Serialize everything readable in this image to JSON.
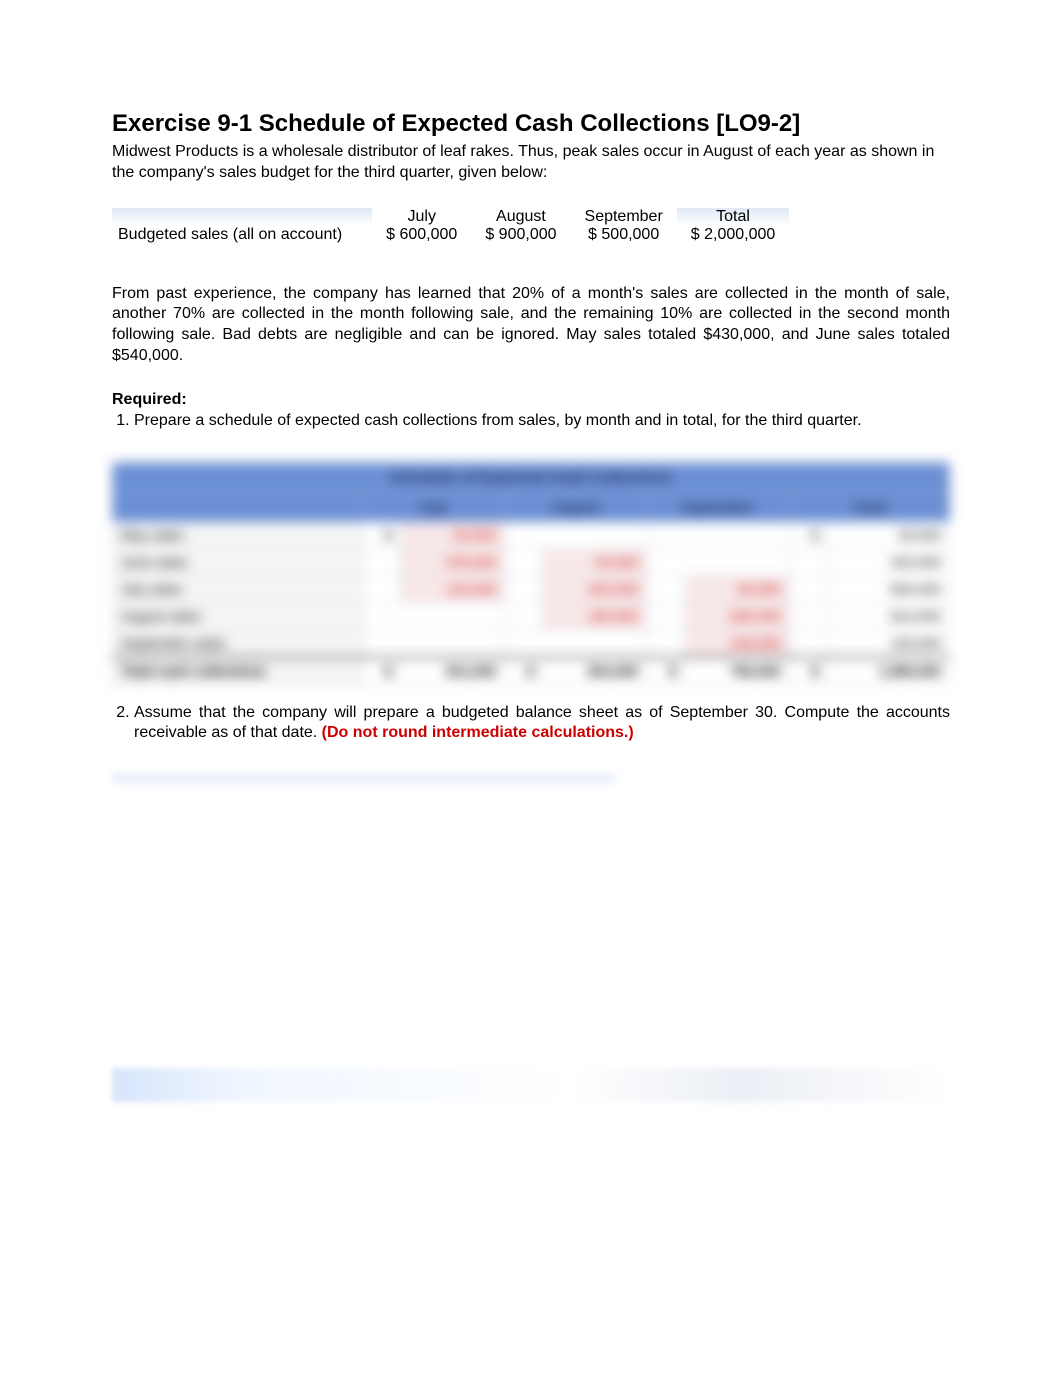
{
  "title": "Exercise 9-1 Schedule of Expected Cash Collections [LO9-2]",
  "intro": "Midwest Products is a wholesale distributor of leaf rakes. Thus, peak sales occur in August of each year as shown in the company's sales budget for the third quarter, given below:",
  "sales_table": {
    "row_label": "Budgeted sales (all on account)",
    "columns": [
      "July",
      "August",
      "September",
      "Total"
    ],
    "values": [
      "$ 600,000",
      "$ 900,000",
      "$ 500,000",
      "$ 2,000,000"
    ]
  },
  "para": "From past experience, the company has learned that 20% of a month's sales are collected in the month of sale, another 70% are collected in the month following sale, and the remaining 10% are collected in the second month following sale. Bad debts are negligible and can be ignored. May sales totaled $430,000, and June sales totaled $540,000.",
  "required_label": "Required:",
  "req1": "Prepare a schedule of expected cash collections from sales, by month and in total, for the third quarter.",
  "req2_a": "Assume that the company will prepare a budgeted balance sheet as of September 30. Compute the accounts receivable as of that date. ",
  "req2_b": "(Do not round intermediate calculations.)",
  "blur": {
    "title": "Schedule of Expected Cash Collections",
    "columns": [
      "",
      "July",
      "August",
      "September",
      "Total"
    ],
    "rows": [
      {
        "label": "May sales",
        "cells": [
          "$",
          "43,000",
          "",
          "",
          "$",
          "43,000"
        ]
      },
      {
        "label": "June sales",
        "cells": [
          "",
          "378,000",
          "54,000",
          "",
          "",
          "432,000"
        ]
      },
      {
        "label": "July sales",
        "cells": [
          "",
          "120,000",
          "420,000",
          "60,000",
          "",
          "600,000"
        ]
      },
      {
        "label": "August sales",
        "cells": [
          "",
          "",
          "180,000",
          "630,000",
          "",
          "810,000"
        ]
      },
      {
        "label": "September sales",
        "cells": [
          "",
          "",
          "",
          "100,000",
          "",
          "100,000"
        ]
      },
      {
        "label": "Total cash collections",
        "cells": [
          "$",
          "541,000",
          "$",
          "654,000",
          "$",
          "790,000",
          "$",
          "1,985,000"
        ],
        "total": true
      }
    ],
    "header_bg": "#6b8fd4",
    "neg_color": "#cc0000"
  }
}
